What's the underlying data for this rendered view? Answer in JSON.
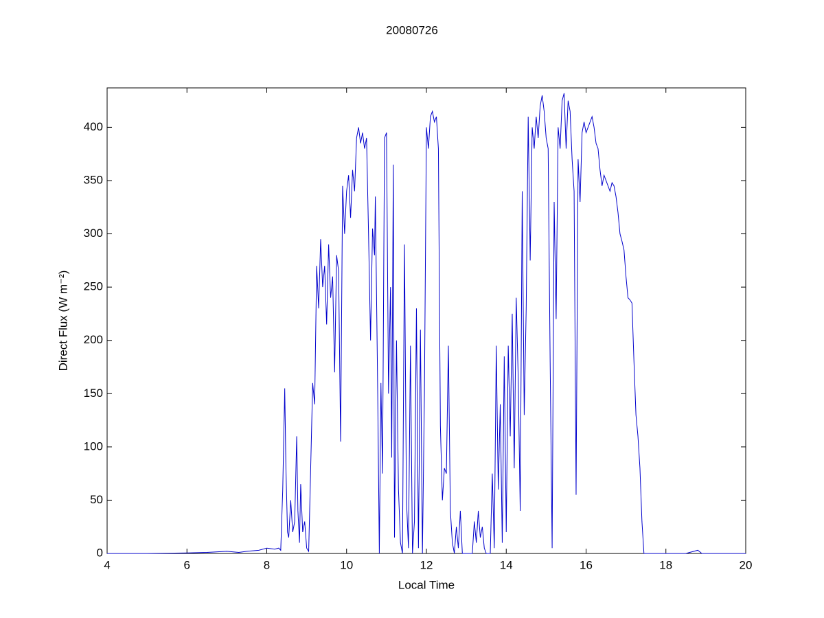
{
  "chart_data": {
    "type": "line",
    "title": "20080726",
    "xlabel": "Local Time",
    "ylabel": "Direct Flux (W m⁻²)",
    "color": "#0000cc",
    "xlim": [
      4,
      20
    ],
    "xticks": [
      4,
      6,
      8,
      10,
      12,
      14,
      16,
      18,
      20
    ],
    "ylim": [
      0,
      437
    ],
    "yticks": [
      0,
      50,
      100,
      150,
      200,
      250,
      300,
      350,
      400
    ],
    "x": [
      4,
      5,
      6,
      6.5,
      7,
      7.3,
      7.5,
      7.8,
      8.0,
      8.2,
      8.3,
      8.35,
      8.4,
      8.45,
      8.48,
      8.52,
      8.55,
      8.6,
      8.65,
      8.7,
      8.75,
      8.78,
      8.82,
      8.85,
      8.9,
      8.95,
      9.0,
      9.05,
      9.1,
      9.15,
      9.2,
      9.25,
      9.3,
      9.35,
      9.4,
      9.45,
      9.5,
      9.55,
      9.6,
      9.65,
      9.7,
      9.75,
      9.8,
      9.85,
      9.9,
      9.95,
      10.0,
      10.05,
      10.1,
      10.15,
      10.2,
      10.25,
      10.3,
      10.35,
      10.4,
      10.45,
      10.5,
      10.55,
      10.6,
      10.65,
      10.7,
      10.72,
      10.78,
      10.82,
      10.86,
      10.9,
      10.95,
      11.0,
      11.05,
      11.1,
      11.13,
      11.17,
      11.2,
      11.25,
      11.3,
      11.35,
      11.4,
      11.45,
      11.5,
      11.55,
      11.6,
      11.65,
      11.7,
      11.75,
      11.8,
      11.85,
      11.9,
      11.95,
      12.0,
      12.05,
      12.1,
      12.15,
      12.2,
      12.25,
      12.3,
      12.35,
      12.4,
      12.45,
      12.5,
      12.55,
      12.6,
      12.65,
      12.7,
      12.75,
      12.8,
      12.85,
      12.9,
      13.0,
      13.15,
      13.2,
      13.25,
      13.3,
      13.35,
      13.4,
      13.45,
      13.5,
      13.6,
      13.65,
      13.7,
      13.75,
      13.8,
      13.85,
      13.9,
      13.95,
      14.0,
      14.05,
      14.1,
      14.15,
      14.2,
      14.25,
      14.3,
      14.35,
      14.4,
      14.45,
      14.5,
      14.55,
      14.6,
      14.65,
      14.7,
      14.75,
      14.8,
      14.85,
      14.9,
      14.95,
      15.0,
      15.05,
      15.1,
      15.15,
      15.2,
      15.25,
      15.3,
      15.35,
      15.4,
      15.45,
      15.5,
      15.55,
      15.6,
      15.65,
      15.7,
      15.75,
      15.8,
      15.85,
      15.9,
      15.95,
      16.0,
      16.05,
      16.1,
      16.15,
      16.2,
      16.25,
      16.3,
      16.35,
      16.4,
      16.45,
      16.5,
      16.55,
      16.6,
      16.65,
      16.7,
      16.75,
      16.8,
      16.85,
      16.9,
      16.95,
      17.0,
      17.05,
      17.1,
      17.15,
      17.2,
      17.25,
      17.3,
      17.35,
      17.4,
      17.45,
      17.6,
      18.0,
      18.5,
      18.8,
      18.9,
      19.5,
      20
    ],
    "values": [
      0,
      0,
      0.5,
      1,
      2,
      1,
      2,
      3,
      5,
      4,
      5,
      3,
      60,
      155,
      80,
      20,
      15,
      50,
      20,
      30,
      110,
      40,
      10,
      65,
      20,
      30,
      5,
      2,
      80,
      160,
      140,
      270,
      230,
      295,
      250,
      270,
      215,
      290,
      240,
      260,
      170,
      280,
      265,
      105,
      345,
      300,
      340,
      355,
      315,
      360,
      340,
      390,
      400,
      385,
      395,
      380,
      390,
      300,
      200,
      305,
      280,
      335,
      150,
      0,
      160,
      75,
      390,
      395,
      150,
      250,
      90,
      365,
      15,
      200,
      60,
      10,
      0,
      290,
      50,
      5,
      195,
      0,
      30,
      230,
      5,
      210,
      0,
      150,
      400,
      380,
      410,
      415,
      405,
      410,
      380,
      120,
      50,
      80,
      75,
      195,
      40,
      10,
      0,
      25,
      5,
      40,
      0,
      0,
      0,
      30,
      10,
      40,
      15,
      25,
      5,
      0,
      0,
      75,
      5,
      195,
      60,
      140,
      10,
      185,
      20,
      195,
      110,
      225,
      80,
      240,
      165,
      40,
      340,
      130,
      230,
      410,
      275,
      400,
      380,
      410,
      390,
      420,
      430,
      415,
      390,
      380,
      180,
      5,
      330,
      220,
      400,
      380,
      425,
      432,
      380,
      425,
      415,
      370,
      340,
      55,
      370,
      330,
      395,
      405,
      395,
      400,
      405,
      410,
      400,
      385,
      380,
      360,
      345,
      355,
      350,
      345,
      340,
      348,
      345,
      335,
      320,
      300,
      293,
      285,
      260,
      240,
      238,
      235,
      180,
      130,
      110,
      80,
      30,
      0,
      0,
      0,
      0,
      3,
      0,
      0,
      0
    ]
  }
}
